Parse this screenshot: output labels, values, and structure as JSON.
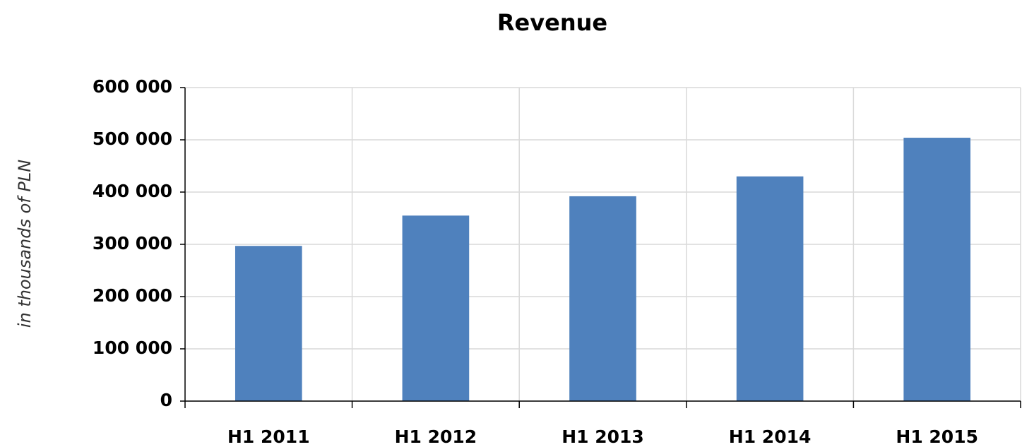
{
  "chart_data": {
    "type": "bar",
    "title": "Revenue",
    "y_label": "in thousands of PLN",
    "categories": [
      "H1 2011",
      "H1 2012",
      "H1 2013",
      "H1 2014",
      "H1 2015"
    ],
    "values": [
      297000,
      355000,
      392000,
      430000,
      504000
    ],
    "color": "#4f81bd",
    "ylim": [
      0,
      600000
    ],
    "yticks": [
      0,
      {
        "value": 100000,
        "label": "100 000"
      },
      {
        "value": 200000,
        "label": "200 000"
      },
      {
        "value": 300000,
        "label": "300 000"
      },
      {
        "value": 400000,
        "label": "400 000"
      },
      {
        "value": 500000,
        "label": "500 000"
      },
      {
        "value": 600000,
        "label": "600 000"
      }
    ],
    "grid": true
  }
}
